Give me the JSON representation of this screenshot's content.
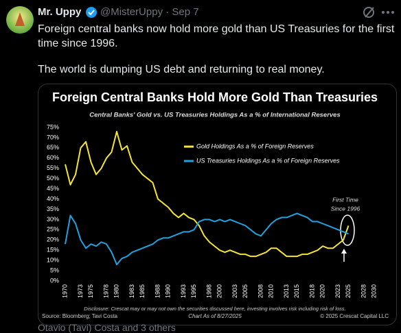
{
  "tweet": {
    "name": "Mr. Uppy",
    "meta": "@MisterUppy · Sep 7",
    "paragraphs": [
      "Foreign central banks now hold more gold than US Treasuries for the first time since 1996.",
      "The world is dumping US debt and returning to real money."
    ],
    "reply_info": "Otavio (Tavi) Costa and 3 others"
  },
  "chart_data": {
    "type": "line",
    "title": "Foreign Central Banks Hold More Gold Than Treasuries",
    "subtitle": "Central Banks' Gold vs. US Treasuries Holdings As a % of International Reserves",
    "x": [
      1970,
      1971,
      1972,
      1973,
      1974,
      1975,
      1976,
      1977,
      1978,
      1979,
      1980,
      1981,
      1982,
      1983,
      1984,
      1985,
      1986,
      1987,
      1988,
      1989,
      1990,
      1991,
      1992,
      1993,
      1994,
      1995,
      1996,
      1997,
      1998,
      1999,
      2000,
      2001,
      2002,
      2003,
      2004,
      2005,
      2006,
      2007,
      2008,
      2009,
      2010,
      2011,
      2012,
      2013,
      2014,
      2015,
      2016,
      2017,
      2018,
      2019,
      2020,
      2021,
      2022,
      2023,
      2024,
      2025
    ],
    "series": [
      {
        "name": "Gold Holdings As a % of Foreign Reserves",
        "color": "#f5e634",
        "values": [
          57,
          47,
          52,
          65,
          68,
          58,
          52,
          55,
          60,
          63,
          73,
          64,
          66,
          58,
          55,
          52,
          50,
          48,
          40,
          38,
          36,
          33,
          31,
          33,
          31,
          30,
          27,
          22,
          19,
          17,
          15,
          14,
          15,
          14,
          13,
          13,
          12,
          12,
          13,
          14,
          16,
          16,
          14,
          12,
          12,
          12,
          13,
          13,
          14,
          15,
          17,
          16,
          16,
          18,
          20,
          27
        ]
      },
      {
        "name": "US Treasuries Holdings As a % of Foreign Reserves",
        "color": "#1fa3e0",
        "values": [
          18,
          32,
          28,
          20,
          16,
          18,
          17,
          19,
          18,
          14,
          8,
          11,
          12,
          14,
          15,
          16,
          17,
          18,
          20,
          21,
          21,
          22,
          23,
          24,
          24,
          25,
          29,
          30,
          30,
          29,
          30,
          29,
          30,
          29,
          28,
          27,
          25,
          23,
          22,
          25,
          28,
          30,
          31,
          31,
          32,
          33,
          32,
          31,
          29,
          29,
          28,
          27,
          26,
          25,
          24,
          23
        ]
      }
    ],
    "xlim": [
      1970,
      2030
    ],
    "xticks": [
      1970,
      1973,
      1975,
      1978,
      1980,
      1983,
      1985,
      1988,
      1990,
      1993,
      1995,
      1998,
      2000,
      2003,
      2005,
      2008,
      2010,
      2013,
      2015,
      2018,
      2020,
      2023,
      2025,
      2028,
      2030
    ],
    "ylim": [
      0,
      75
    ],
    "yticks": [
      {
        "value": 0,
        "label": "0%"
      },
      {
        "value": 5,
        "label": "5%"
      },
      {
        "value": 10,
        "label": "10%"
      },
      {
        "value": 15,
        "label": "15%"
      },
      {
        "value": 20,
        "label": "20%"
      },
      {
        "value": 25,
        "label": "25%"
      },
      {
        "value": 30,
        "label": "30%"
      },
      {
        "value": 35,
        "label": "35%"
      },
      {
        "value": 40,
        "label": "40%"
      },
      {
        "value": 45,
        "label": "45%"
      },
      {
        "value": 50,
        "label": "50%"
      },
      {
        "value": 55,
        "label": "55%"
      },
      {
        "value": 60,
        "label": "60%"
      },
      {
        "value": 65,
        "label": "65%"
      },
      {
        "value": 70,
        "label": "70%"
      },
      {
        "value": 75,
        "label": "75%"
      }
    ],
    "annotation": [
      "First Time",
      "Since 1996"
    ],
    "disclosure": [
      "Disclosure: Crescat may or may not own the securities discussed here, investing involves risk including risk of loss.",
      "Chart As of 8/27/2025"
    ],
    "source": "Source: Bloomberg; Tavi Costa",
    "copyright": "© 2025 Crescat Capital LLC"
  }
}
